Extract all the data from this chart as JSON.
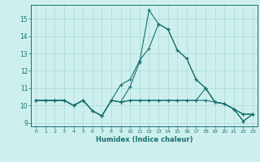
{
  "xlabel": "Humidex (Indice chaleur)",
  "ylabel": "",
  "bg_color": "#cdf0ee",
  "grid_color": "#aed8d5",
  "line_color": "#1a7070",
  "xlim": [
    -0.5,
    23.5
  ],
  "ylim": [
    8.8,
    15.8
  ],
  "yticks": [
    9,
    10,
    11,
    12,
    13,
    14,
    15
  ],
  "xticks": [
    0,
    1,
    2,
    3,
    4,
    5,
    6,
    7,
    8,
    9,
    10,
    11,
    12,
    13,
    14,
    15,
    16,
    17,
    18,
    19,
    20,
    21,
    22,
    23
  ],
  "series": [
    [
      10.3,
      10.3,
      10.3,
      10.3,
      10.0,
      10.3,
      9.7,
      9.4,
      10.3,
      10.2,
      10.3,
      10.3,
      10.3,
      10.3,
      10.3,
      10.3,
      10.3,
      10.3,
      10.3,
      10.2,
      10.1,
      9.8,
      9.5,
      9.5
    ],
    [
      10.3,
      10.3,
      10.3,
      10.3,
      10.0,
      10.3,
      9.7,
      9.4,
      10.3,
      11.2,
      11.5,
      12.6,
      13.3,
      14.7,
      14.4,
      13.2,
      12.7,
      11.5,
      11.0,
      10.2,
      10.1,
      9.8,
      9.1,
      9.5
    ],
    [
      10.3,
      10.3,
      10.3,
      10.3,
      10.0,
      10.3,
      9.7,
      9.4,
      10.3,
      10.2,
      11.1,
      12.5,
      15.5,
      14.7,
      14.4,
      13.2,
      12.7,
      11.5,
      11.0,
      10.2,
      10.1,
      9.8,
      9.1,
      9.5
    ],
    [
      10.3,
      10.3,
      10.3,
      10.3,
      10.0,
      10.3,
      9.7,
      9.4,
      10.3,
      10.2,
      10.3,
      10.3,
      10.3,
      10.3,
      10.3,
      10.3,
      10.3,
      10.3,
      11.0,
      10.2,
      10.1,
      9.8,
      9.5,
      9.5
    ]
  ]
}
